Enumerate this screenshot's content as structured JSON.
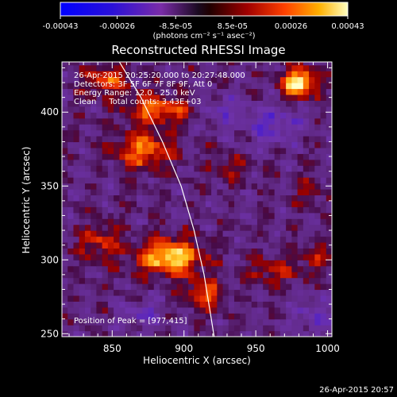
{
  "colorbar": {
    "ticks": [
      "-0.00043",
      "-0.00026",
      "-8.5e-05",
      "8.5e-05",
      "0.00026",
      "0.00043"
    ],
    "tick_values": [
      -0.00043,
      -0.00026,
      -8.5e-05,
      8.5e-05,
      0.00026,
      0.00043
    ],
    "range": [
      -0.00043,
      0.00043
    ],
    "units_label": "(photons cm⁻² s⁻¹ asec⁻²)"
  },
  "chart_data": {
    "type": "heatmap",
    "title": "Reconstructed RHESSI Image",
    "xlabel": "Heliocentric X (arcsec)",
    "ylabel": "Heliocentric Y (arcsec)",
    "xlim": [
      815,
      1003
    ],
    "ylim": [
      248,
      434
    ],
    "xticks": [
      850,
      900,
      950,
      1000
    ],
    "yticks": [
      250,
      300,
      350,
      400
    ],
    "annotations": [
      "26-Apr-2015 20:25:20.000 to 20:27:48.000",
      "Detectors: 3F 5F 6F 7F 8F 9F, Att 0",
      "Energy Range: 12.0 - 25.0 keV",
      "Clean     Total counts: 3.43E+03"
    ],
    "peak_label": "Position of Peak = [977,415]",
    "peak": [
      977,
      415
    ],
    "limb_curve": [
      [
        855,
        434
      ],
      [
        870,
        410
      ],
      [
        885,
        380
      ],
      [
        898,
        350
      ],
      [
        907,
        320
      ],
      [
        914,
        290
      ],
      [
        919,
        260
      ],
      [
        921,
        248
      ]
    ],
    "blobs": [
      {
        "x": 978,
        "y": 418,
        "amp": 1.0,
        "sx": 12,
        "sy": 10
      },
      {
        "x": 888,
        "y": 300,
        "amp": 0.95,
        "sx": 22,
        "sy": 12
      },
      {
        "x": 870,
        "y": 372,
        "amp": 0.65,
        "sx": 20,
        "sy": 12
      },
      {
        "x": 880,
        "y": 400,
        "amp": 0.62,
        "sx": 22,
        "sy": 10
      },
      {
        "x": 845,
        "y": 420,
        "amp": 0.55,
        "sx": 14,
        "sy": 10
      },
      {
        "x": 912,
        "y": 275,
        "amp": 0.55,
        "sx": 14,
        "sy": 10
      },
      {
        "x": 840,
        "y": 310,
        "amp": 0.45,
        "sx": 14,
        "sy": 12
      },
      {
        "x": 960,
        "y": 290,
        "amp": 0.35,
        "sx": 20,
        "sy": 10
      },
      {
        "x": 990,
        "y": 300,
        "amp": 0.3,
        "sx": 12,
        "sy": 10
      },
      {
        "x": 985,
        "y": 345,
        "amp": 0.25,
        "sx": 12,
        "sy": 10
      },
      {
        "x": 930,
        "y": 360,
        "amp": 0.3,
        "sx": 12,
        "sy": 10
      },
      {
        "x": 960,
        "y": 390,
        "amp": -0.35,
        "sx": 20,
        "sy": 14
      },
      {
        "x": 925,
        "y": 400,
        "amp": -0.3,
        "sx": 14,
        "sy": 10
      },
      {
        "x": 990,
        "y": 260,
        "amp": -0.3,
        "sx": 15,
        "sy": 12
      },
      {
        "x": 870,
        "y": 262,
        "amp": -0.3,
        "sx": 14,
        "sy": 10
      }
    ]
  },
  "footer": {
    "timestamp": "26-Apr-2015 20:57"
  }
}
